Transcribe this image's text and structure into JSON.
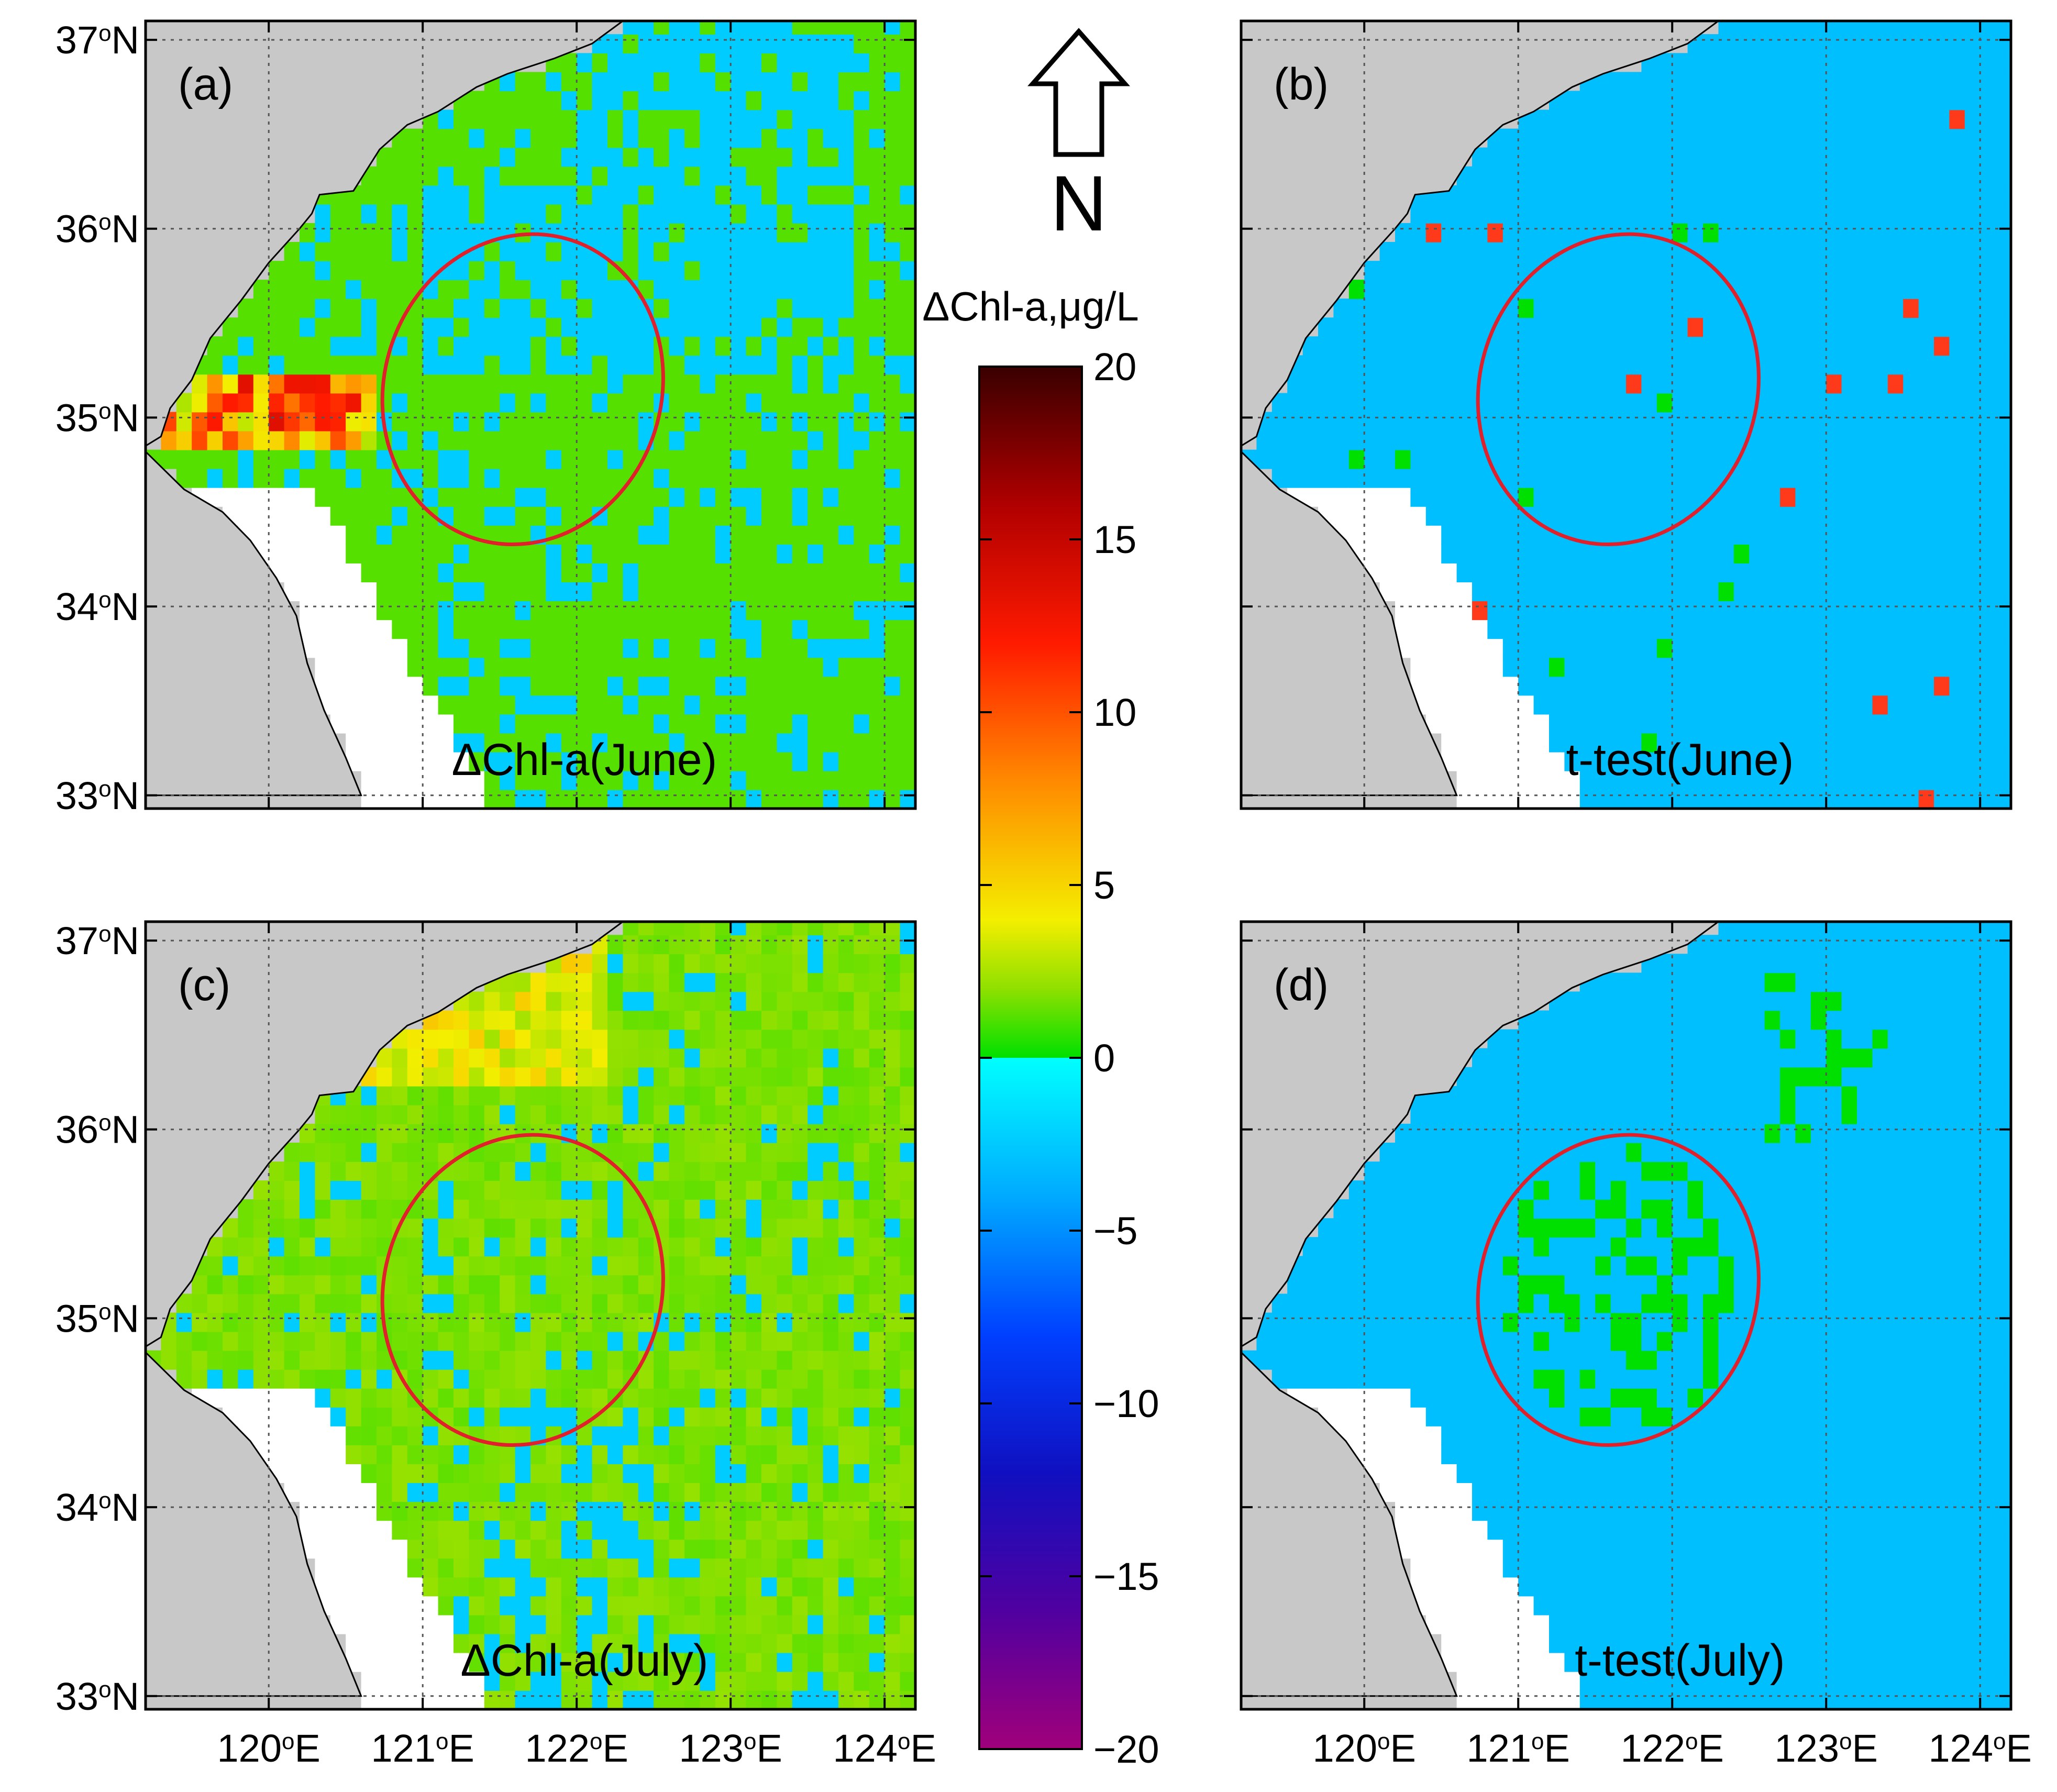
{
  "figure": {
    "panels": [
      {
        "id": "a",
        "letter": "(a)",
        "title": "ΔChl-a(June)",
        "type": "delta",
        "month": "June"
      },
      {
        "id": "b",
        "letter": "(b)",
        "title": "t-test(June)",
        "type": "ttest",
        "month": "June"
      },
      {
        "id": "c",
        "letter": "(c)",
        "title": "ΔChl-a(July)",
        "type": "delta",
        "month": "July"
      },
      {
        "id": "d",
        "letter": "(d)",
        "title": "t-test(July)",
        "type": "ttest",
        "month": "July"
      }
    ],
    "lat_ticks": [
      {
        "value": 37,
        "label": "37",
        "sup": "o",
        "hem": "N"
      },
      {
        "value": 36,
        "label": "36",
        "sup": "o",
        "hem": "N"
      },
      {
        "value": 35,
        "label": "35",
        "sup": "o",
        "hem": "N"
      },
      {
        "value": 34,
        "label": "34",
        "sup": "o",
        "hem": "N"
      },
      {
        "value": 33,
        "label": "33",
        "sup": "o",
        "hem": "N"
      }
    ],
    "lon_ticks": [
      {
        "value": 120,
        "label": "120",
        "sup": "o",
        "hem": "E"
      },
      {
        "value": 121,
        "label": "121",
        "sup": "o",
        "hem": "E"
      },
      {
        "value": 122,
        "label": "122",
        "sup": "o",
        "hem": "E"
      },
      {
        "value": 123,
        "label": "123",
        "sup": "o",
        "hem": "E"
      },
      {
        "value": 124,
        "label": "124",
        "sup": "o",
        "hem": "E"
      }
    ],
    "lon_range": [
      119.2,
      124.2
    ],
    "lat_range": [
      32.93,
      37.1
    ],
    "ellipse": {
      "center_lon": 121.65,
      "center_lat": 35.15,
      "semi_lon": 0.9,
      "semi_lat": 0.83,
      "color": "#e0202a"
    },
    "colorbar": {
      "title": "ΔChl-a,μg/L",
      "min": -20,
      "max": 20,
      "ticks": [
        {
          "value": 20,
          "label": "20"
        },
        {
          "value": 15,
          "label": "15"
        },
        {
          "value": 10,
          "label": "10"
        },
        {
          "value": 5,
          "label": "5"
        },
        {
          "value": 0,
          "label": "0"
        },
        {
          "value": -5,
          "label": "−5"
        },
        {
          "value": -10,
          "label": "−10"
        },
        {
          "value": -15,
          "label": "−15"
        },
        {
          "value": -20,
          "label": "−20"
        }
      ]
    },
    "north_arrow": {
      "label": "N"
    },
    "colors": {
      "land": "#c8c8c8",
      "nodata": "#ffffff",
      "ttest_ocean": "#00bfff",
      "ttest_positive": "#00e000",
      "ttest_negative": "#ff3a1a",
      "grid": "#555555",
      "frame": "#000000"
    }
  }
}
